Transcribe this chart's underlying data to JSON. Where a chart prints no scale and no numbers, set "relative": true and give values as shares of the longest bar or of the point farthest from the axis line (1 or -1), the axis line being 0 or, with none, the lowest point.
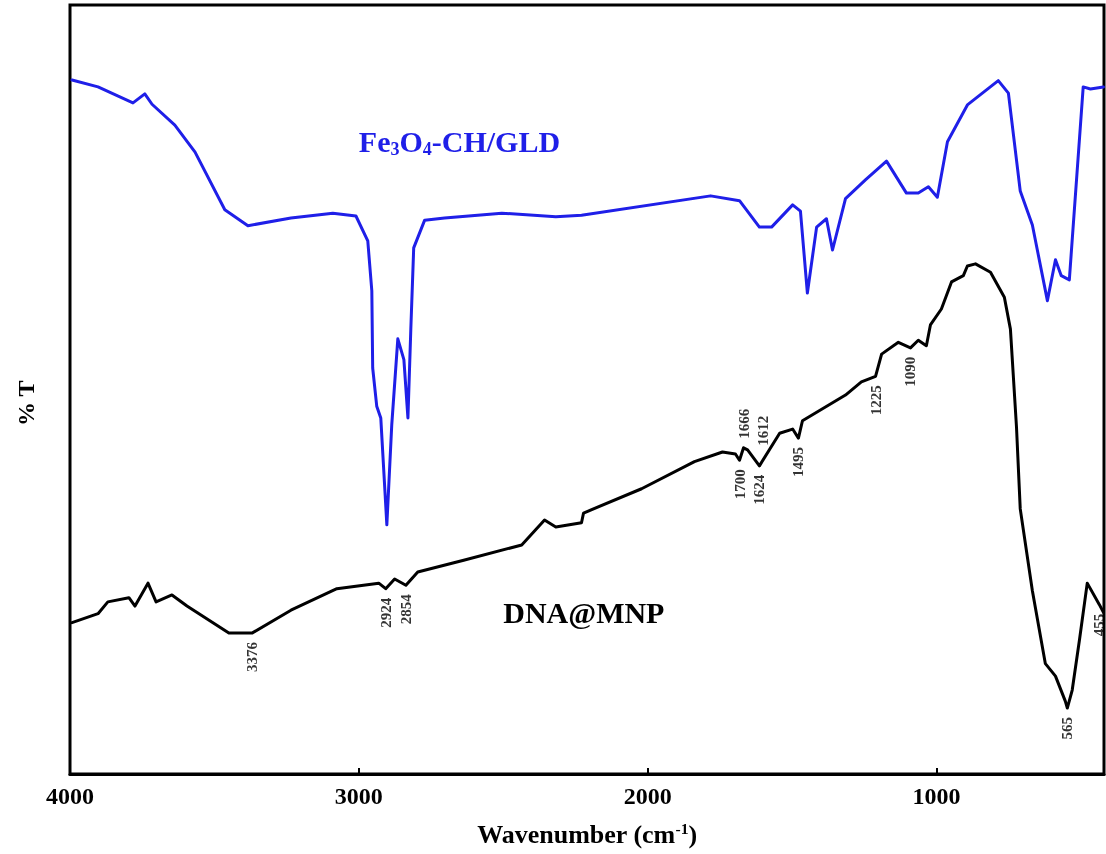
{
  "chart_data": {
    "type": "line",
    "relative": true,
    "xlabel": "Wavenumber (cm$^{-1}$)",
    "ylabel": "% T",
    "xlim": [
      4000,
      420
    ],
    "xticks": [
      4000,
      3000,
      2000,
      1000
    ],
    "legend": false,
    "grid": false,
    "marker": "none",
    "line_style": "solid",
    "series": [
      {
        "name": "Fe$_{3}$O$_{4}$-CH/GLD",
        "color": "#1f1fe8",
        "x": [
          3993,
          3903,
          3782,
          3741,
          3716,
          3637,
          3567,
          3464,
          3384,
          3235,
          3090,
          3010,
          2969,
          2955,
          2952,
          2938,
          2924,
          2903,
          2886,
          2865,
          2844,
          2830,
          2820,
          2810,
          2772,
          2703,
          2505,
          2318,
          2229,
          1782,
          1682,
          1613,
          1571,
          1498,
          1471,
          1447,
          1415,
          1381,
          1360,
          1315,
          1246,
          1173,
          1104,
          1063,
          1028,
          997,
          962,
          893,
          786,
          751,
          710,
          668,
          616,
          588,
          568,
          540,
          492,
          467,
          422
        ],
        "values": [
          1.0,
          0.99,
          0.967,
          0.98,
          0.965,
          0.935,
          0.896,
          0.813,
          0.79,
          0.801,
          0.808,
          0.804,
          0.768,
          0.696,
          0.585,
          0.53,
          0.513,
          0.359,
          0.503,
          0.627,
          0.597,
          0.513,
          0.641,
          0.758,
          0.798,
          0.801,
          0.808,
          0.803,
          0.805,
          0.833,
          0.826,
          0.788,
          0.788,
          0.82,
          0.811,
          0.693,
          0.788,
          0.8,
          0.755,
          0.829,
          0.856,
          0.883,
          0.837,
          0.837,
          0.846,
          0.831,
          0.911,
          0.964,
          0.999,
          0.981,
          0.84,
          0.791,
          0.682,
          0.741,
          0.718,
          0.712,
          0.99,
          0.987,
          0.99
        ]
      },
      {
        "name": "DNA@MNP",
        "color": "#000000",
        "x": [
          3993,
          3903,
          3869,
          3796,
          3775,
          3730,
          3702,
          3647,
          3595,
          3450,
          3370,
          3235,
          3076,
          2931,
          2907,
          2876,
          2837,
          2796,
          2637,
          2436,
          2357,
          2318,
          2229,
          2222,
          2021,
          1838,
          1741,
          1696,
          1682,
          1668,
          1654,
          1613,
          1543,
          1498,
          1478,
          1464,
          1315,
          1260,
          1211,
          1190,
          1132,
          1090,
          1063,
          1035,
          1021,
          983,
          948,
          907,
          893,
          865,
          813,
          765,
          744,
          723,
          710,
          668,
          623,
          588,
          554,
          547,
          530,
          505,
          478,
          436,
          422
        ],
        "values": [
          0.218,
          0.231,
          0.248,
          0.254,
          0.242,
          0.275,
          0.248,
          0.258,
          0.242,
          0.203,
          0.203,
          0.236,
          0.267,
          0.275,
          0.267,
          0.281,
          0.272,
          0.291,
          0.308,
          0.33,
          0.366,
          0.356,
          0.362,
          0.376,
          0.411,
          0.45,
          0.464,
          0.461,
          0.452,
          0.47,
          0.467,
          0.444,
          0.491,
          0.497,
          0.484,
          0.509,
          0.546,
          0.565,
          0.573,
          0.605,
          0.622,
          0.614,
          0.625,
          0.617,
          0.647,
          0.67,
          0.709,
          0.718,
          0.732,
          0.735,
          0.723,
          0.687,
          0.641,
          0.5,
          0.382,
          0.264,
          0.159,
          0.141,
          0.105,
          0.095,
          0.121,
          0.193,
          0.275,
          0.244,
          0.233
        ]
      }
    ],
    "annotations": [
      {
        "text": "3376",
        "x": 3370,
        "y": 0.203
      },
      {
        "text": "2924",
        "x": 2907,
        "y": 0.267
      },
      {
        "text": "2854",
        "x": 2837,
        "y": 0.272
      },
      {
        "text": "1700",
        "x": 1682,
        "y": 0.452
      },
      {
        "text": "1666",
        "x": 1668,
        "y": 0.47
      },
      {
        "text": "1624",
        "x": 1613,
        "y": 0.444
      },
      {
        "text": "1612",
        "x": 1600,
        "y": 0.46
      },
      {
        "text": "1495",
        "x": 1478,
        "y": 0.484
      },
      {
        "text": "1225",
        "x": 1211,
        "y": 0.573
      },
      {
        "text": "1090",
        "x": 1090,
        "y": 0.614
      },
      {
        "text": "565",
        "x": 547,
        "y": 0.095
      },
      {
        "text": "455",
        "x": 436,
        "y": 0.244
      }
    ]
  }
}
